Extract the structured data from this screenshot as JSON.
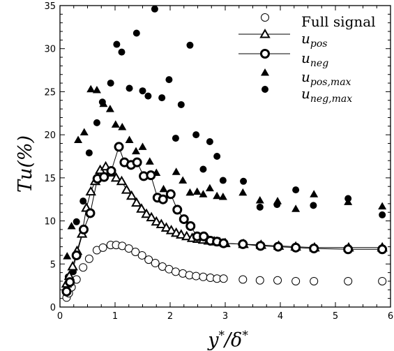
{
  "chart_data": {
    "type": "scatter",
    "xlabel": "y*/δ*",
    "ylabel": "Tu(%)",
    "xlim": [
      0,
      6
    ],
    "ylim": [
      0,
      35
    ],
    "xticks": [
      "0",
      "1",
      "2",
      "3",
      "4",
      "5",
      "6"
    ],
    "yticks": [
      "0",
      "5",
      "10",
      "15",
      "20",
      "25",
      "30",
      "35"
    ],
    "legend_position": "top-right",
    "grid": false,
    "series": [
      {
        "name": "Full signal",
        "marker": "open-circle",
        "line": false,
        "points": [
          [
            0.12,
            1.1
          ],
          [
            0.16,
            1.6
          ],
          [
            0.21,
            2.3
          ],
          [
            0.3,
            3.2
          ],
          [
            0.42,
            4.6
          ],
          [
            0.53,
            5.6
          ],
          [
            0.67,
            6.6
          ],
          [
            0.78,
            6.9
          ],
          [
            0.92,
            7.2
          ],
          [
            1.02,
            7.2
          ],
          [
            1.13,
            7.1
          ],
          [
            1.25,
            6.8
          ],
          [
            1.37,
            6.4
          ],
          [
            1.49,
            6.0
          ],
          [
            1.61,
            5.5
          ],
          [
            1.73,
            5.1
          ],
          [
            1.86,
            4.7
          ],
          [
            1.98,
            4.4
          ],
          [
            2.1,
            4.1
          ],
          [
            2.23,
            3.9
          ],
          [
            2.35,
            3.7
          ],
          [
            2.47,
            3.6
          ],
          [
            2.6,
            3.5
          ],
          [
            2.73,
            3.4
          ],
          [
            2.85,
            3.3
          ],
          [
            2.97,
            3.3
          ],
          [
            3.32,
            3.2
          ],
          [
            3.63,
            3.1
          ],
          [
            3.95,
            3.1
          ],
          [
            4.28,
            3.0
          ],
          [
            4.61,
            3.0
          ],
          [
            5.23,
            3.0
          ],
          [
            5.85,
            3.0
          ]
        ]
      },
      {
        "name": "u_pos",
        "label_main": "u",
        "label_sub": "pos",
        "marker": "open-triangle",
        "line": true,
        "points": [
          [
            0.12,
            2.7
          ],
          [
            0.17,
            3.6
          ],
          [
            0.23,
            4.7
          ],
          [
            0.31,
            6.5
          ],
          [
            0.4,
            8.5
          ],
          [
            0.48,
            11.5
          ],
          [
            0.56,
            13.4
          ],
          [
            0.64,
            14.6
          ],
          [
            0.73,
            15.9
          ],
          [
            0.83,
            16.3
          ],
          [
            0.92,
            15.6
          ],
          [
            1.02,
            15.0
          ],
          [
            1.12,
            14.6
          ],
          [
            1.21,
            13.6
          ],
          [
            1.3,
            12.9
          ],
          [
            1.39,
            12.1
          ],
          [
            1.48,
            11.4
          ],
          [
            1.57,
            10.8
          ],
          [
            1.66,
            10.4
          ],
          [
            1.75,
            9.9
          ],
          [
            1.84,
            9.6
          ],
          [
            1.93,
            9.2
          ],
          [
            2.02,
            8.9
          ],
          [
            2.11,
            8.6
          ],
          [
            2.2,
            8.4
          ],
          [
            2.3,
            8.2
          ],
          [
            2.4,
            8.0
          ],
          [
            2.5,
            7.9
          ],
          [
            2.6,
            7.8
          ],
          [
            2.7,
            7.7
          ],
          [
            2.8,
            7.6
          ],
          [
            2.9,
            7.5
          ],
          [
            3.0,
            7.4
          ],
          [
            3.33,
            7.3
          ],
          [
            3.65,
            7.2
          ],
          [
            3.97,
            7.1
          ],
          [
            4.28,
            7.0
          ],
          [
            4.62,
            6.9
          ],
          [
            5.24,
            6.9
          ],
          [
            5.85,
            6.9
          ]
        ]
      },
      {
        "name": "u_neg",
        "label_main": "u",
        "label_sub": "neg",
        "marker": "open-circle-thick",
        "line": true,
        "points": [
          [
            0.12,
            1.8
          ],
          [
            0.18,
            2.9
          ],
          [
            0.3,
            6.0
          ],
          [
            0.43,
            9.0
          ],
          [
            0.55,
            10.9
          ],
          [
            0.68,
            14.9
          ],
          [
            0.8,
            15.1
          ],
          [
            0.93,
            15.8
          ],
          [
            1.07,
            18.6
          ],
          [
            1.17,
            16.8
          ],
          [
            1.29,
            16.5
          ],
          [
            1.4,
            16.8
          ],
          [
            1.52,
            15.2
          ],
          [
            1.65,
            15.3
          ],
          [
            1.77,
            12.7
          ],
          [
            1.87,
            12.5
          ],
          [
            2.01,
            13.1
          ],
          [
            2.13,
            11.3
          ],
          [
            2.25,
            10.2
          ],
          [
            2.37,
            9.4
          ],
          [
            2.49,
            8.2
          ],
          [
            2.61,
            8.2
          ],
          [
            2.73,
            7.7
          ],
          [
            2.85,
            7.6
          ],
          [
            2.97,
            7.4
          ],
          [
            3.32,
            7.3
          ],
          [
            3.64,
            7.1
          ],
          [
            3.96,
            7.0
          ],
          [
            4.28,
            6.9
          ],
          [
            4.61,
            6.8
          ],
          [
            5.23,
            6.7
          ],
          [
            5.85,
            6.7
          ]
        ]
      },
      {
        "name": "u_pos,max",
        "label_main": "u",
        "label_sub": "pos,max",
        "marker": "filled-triangle",
        "line": false,
        "points": [
          [
            0.13,
            5.9
          ],
          [
            0.21,
            9.4
          ],
          [
            0.33,
            19.4
          ],
          [
            0.44,
            20.3
          ],
          [
            0.56,
            25.3
          ],
          [
            0.67,
            25.2
          ],
          [
            0.79,
            23.6
          ],
          [
            0.91,
            23.0
          ],
          [
            1.01,
            21.2
          ],
          [
            1.13,
            20.9
          ],
          [
            1.26,
            19.4
          ],
          [
            1.38,
            18.1
          ],
          [
            1.5,
            18.6
          ],
          [
            1.63,
            16.9
          ],
          [
            1.75,
            15.6
          ],
          [
            1.88,
            13.7
          ],
          [
            1.99,
            13.1
          ],
          [
            2.11,
            15.7
          ],
          [
            2.23,
            14.7
          ],
          [
            2.36,
            13.3
          ],
          [
            2.49,
            13.4
          ],
          [
            2.6,
            13.1
          ],
          [
            2.72,
            13.8
          ],
          [
            2.85,
            12.9
          ],
          [
            2.96,
            12.8
          ],
          [
            3.32,
            13.3
          ],
          [
            3.63,
            12.4
          ],
          [
            3.95,
            12.3
          ],
          [
            4.28,
            11.4
          ],
          [
            4.61,
            13.1
          ],
          [
            5.23,
            12.2
          ],
          [
            5.85,
            11.7
          ]
        ]
      },
      {
        "name": "u_neg,max",
        "label_main": "u",
        "label_sub": "neg,max",
        "marker": "filled-circle",
        "line": false,
        "points": [
          [
            0.15,
            3.5
          ],
          [
            0.24,
            4.1
          ],
          [
            0.3,
            9.9
          ],
          [
            0.42,
            12.3
          ],
          [
            0.53,
            17.9
          ],
          [
            0.67,
            21.4
          ],
          [
            0.77,
            23.8
          ],
          [
            0.92,
            26.0
          ],
          [
            1.03,
            30.5
          ],
          [
            1.12,
            29.6
          ],
          [
            1.26,
            25.4
          ],
          [
            1.39,
            31.8
          ],
          [
            1.5,
            25.1
          ],
          [
            1.6,
            24.5
          ],
          [
            1.72,
            34.6
          ],
          [
            1.85,
            24.3
          ],
          [
            1.98,
            26.4
          ],
          [
            2.1,
            19.6
          ],
          [
            2.2,
            23.5
          ],
          [
            2.36,
            30.4
          ],
          [
            2.47,
            20.0
          ],
          [
            2.6,
            16.0
          ],
          [
            2.72,
            19.2
          ],
          [
            2.85,
            17.5
          ],
          [
            2.96,
            14.7
          ],
          [
            3.33,
            14.6
          ],
          [
            3.63,
            11.6
          ],
          [
            3.94,
            11.9
          ],
          [
            4.28,
            13.6
          ],
          [
            4.6,
            11.8
          ],
          [
            5.23,
            12.6
          ],
          [
            5.85,
            10.7
          ]
        ]
      }
    ]
  }
}
